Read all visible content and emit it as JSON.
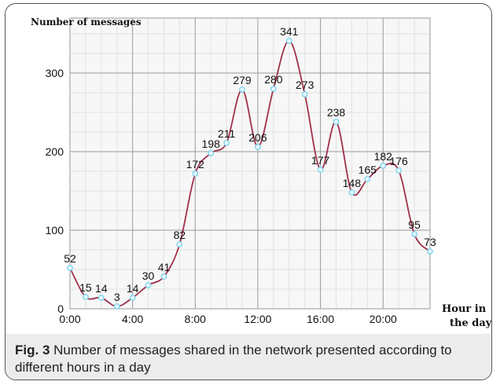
{
  "chart_data": {
    "type": "line",
    "ylabel": "Number of messages",
    "xlabel": [
      "Hour in",
      "the day"
    ],
    "x_tick_labels": [
      "0:00",
      "4:00",
      "8:00",
      "12:00",
      "16:00",
      "20:00"
    ],
    "x_ticks": [
      0,
      4,
      8,
      12,
      16,
      20
    ],
    "y_ticks": [
      0,
      100,
      200,
      300
    ],
    "xlim": [
      0,
      23
    ],
    "ylim": [
      0,
      370
    ],
    "grid": true,
    "x": [
      0,
      1,
      2,
      3,
      4,
      5,
      6,
      7,
      8,
      9,
      10,
      11,
      12,
      13,
      14,
      15,
      16,
      17,
      18,
      19,
      20,
      21,
      22,
      23
    ],
    "values": [
      52,
      15,
      14,
      3,
      14,
      30,
      41,
      82,
      172,
      198,
      211,
      279,
      206,
      280,
      341,
      273,
      177,
      238,
      148,
      165,
      182,
      176,
      95,
      73
    ],
    "line_color": "#a0304a",
    "marker_color": "#7fd4f0"
  },
  "caption": {
    "label": "Fig. 3",
    "text": " Number of messages shared in the network presented according to different hours in a day"
  }
}
